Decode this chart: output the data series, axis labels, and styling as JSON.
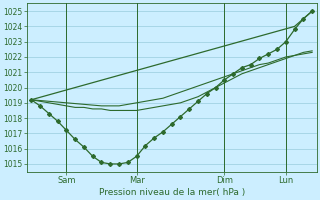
{
  "background_color": "#cceeff",
  "grid_color": "#99ccdd",
  "line_color": "#2d6a2d",
  "xlabel": "Pression niveau de la mer( hPa )",
  "ylim": [
    1014.5,
    1025.5
  ],
  "yticks": [
    1015,
    1016,
    1017,
    1018,
    1019,
    1020,
    1021,
    1022,
    1023,
    1024,
    1025
  ],
  "x_tick_labels": [
    "Sam",
    "Mar",
    "Dim",
    "Lun"
  ],
  "x_tick_positions": [
    4,
    12,
    22,
    29
  ],
  "n_points": 33,
  "marker_series": [
    1019.2,
    1018.8,
    1018.3,
    1017.8,
    1017.2,
    1016.6,
    1016.1,
    1015.5,
    1015.1,
    1015.0,
    1015.0,
    1015.1,
    1015.5,
    1016.2,
    1016.7,
    1017.1,
    1017.6,
    1018.1,
    1018.6,
    1019.1,
    1019.6,
    1020.0,
    1020.5,
    1020.9,
    1021.3,
    1021.5,
    1021.9,
    1022.2,
    1022.5,
    1023.0,
    1023.8,
    1024.5,
    1025.0
  ],
  "smooth_line1": [
    1019.2,
    1019.1,
    1019.0,
    1018.9,
    1018.8,
    1018.7,
    1018.7,
    1018.6,
    1018.6,
    1018.5,
    1018.5,
    1018.5,
    1018.5,
    1018.6,
    1018.7,
    1018.8,
    1018.9,
    1019.0,
    1019.2,
    1019.4,
    1019.7,
    1020.0,
    1020.3,
    1020.6,
    1020.9,
    1021.1,
    1021.3,
    1021.5,
    1021.7,
    1021.9,
    1022.1,
    1022.3,
    1022.4
  ],
  "smooth_line2": [
    1019.2,
    1019.15,
    1019.1,
    1019.05,
    1019.0,
    1018.95,
    1018.9,
    1018.85,
    1018.8,
    1018.8,
    1018.8,
    1018.9,
    1019.0,
    1019.1,
    1019.2,
    1019.3,
    1019.5,
    1019.7,
    1019.9,
    1020.1,
    1020.3,
    1020.5,
    1020.7,
    1020.9,
    1021.1,
    1021.3,
    1021.5,
    1021.6,
    1021.8,
    1022.0,
    1022.1,
    1022.2,
    1022.3
  ],
  "trend_line": [
    1019.2,
    1019.36,
    1019.52,
    1019.68,
    1019.84,
    1020.0,
    1020.16,
    1020.32,
    1020.48,
    1020.64,
    1020.8,
    1020.96,
    1021.12,
    1021.28,
    1021.44,
    1021.6,
    1021.76,
    1021.92,
    1022.08,
    1022.24,
    1022.4,
    1022.56,
    1022.72,
    1022.88,
    1023.04,
    1023.2,
    1023.36,
    1023.52,
    1023.68,
    1023.84,
    1024.0,
    1024.5,
    1025.0
  ],
  "vline_positions": [
    4,
    12,
    22,
    29
  ]
}
